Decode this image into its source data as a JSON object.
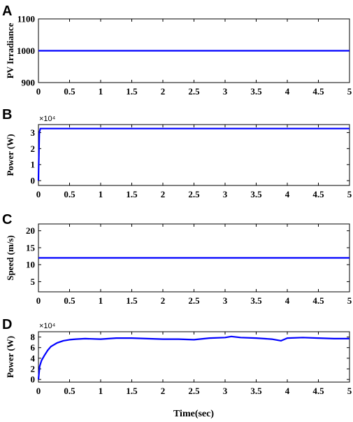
{
  "figure": {
    "xlabel": "Time(sec)"
  },
  "chart_data": [
    {
      "panel": "A",
      "type": "line",
      "title": "",
      "xlabel": "",
      "ylabel": "PV Irradiance",
      "y_multiplier": "",
      "xlim": [
        0,
        5
      ],
      "ylim": [
        900,
        1100
      ],
      "x_ticks": [
        "0",
        "0.5",
        "1",
        "1.5",
        "2",
        "2.5",
        "3",
        "3.5",
        "4",
        "4.5",
        "5"
      ],
      "y_ticks": [
        "900",
        "1000",
        "1100"
      ],
      "y_tick_values": [
        900,
        1000,
        1100
      ],
      "line_color": "#0000ff",
      "series": [
        {
          "x": [
            0,
            5
          ],
          "y": [
            1000,
            1000
          ]
        }
      ]
    },
    {
      "panel": "B",
      "type": "line",
      "title": "",
      "xlabel": "",
      "ylabel": "Power (W)",
      "y_multiplier": "×10⁴",
      "xlim": [
        0,
        5
      ],
      "ylim": [
        -0.3,
        3.5
      ],
      "x_ticks": [
        "0",
        "0.5",
        "1",
        "1.5",
        "2",
        "2.5",
        "3",
        "3.5",
        "4",
        "4.5",
        "5"
      ],
      "y_ticks": [
        "0",
        "1",
        "2",
        "3"
      ],
      "y_tick_values": [
        0,
        1,
        2,
        3
      ],
      "line_color": "#0000ff",
      "series": [
        {
          "x": [
            0,
            0.005,
            0.015,
            0.03,
            5
          ],
          "y": [
            0,
            1.0,
            3.0,
            3.25,
            3.25
          ]
        }
      ]
    },
    {
      "panel": "C",
      "type": "line",
      "title": "",
      "xlabel": "",
      "ylabel": "Speed (m/s)",
      "y_multiplier": "",
      "xlim": [
        0,
        5
      ],
      "ylim": [
        2,
        22
      ],
      "x_ticks": [
        "0",
        "0.5",
        "1",
        "1.5",
        "2",
        "2.5",
        "3",
        "3.5",
        "4",
        "4.5",
        "5"
      ],
      "y_ticks": [
        "5",
        "10",
        "15",
        "20"
      ],
      "y_tick_values": [
        5,
        10,
        15,
        20
      ],
      "line_color": "#0000ff",
      "series": [
        {
          "x": [
            0,
            5
          ],
          "y": [
            12,
            12
          ]
        }
      ]
    },
    {
      "panel": "D",
      "type": "line",
      "title": "",
      "xlabel": "Time(sec)",
      "ylabel": "Power (W)",
      "y_multiplier": "×10⁴",
      "xlim": [
        0,
        5
      ],
      "ylim": [
        -0.5,
        9
      ],
      "x_ticks": [
        "0",
        "0.5",
        "1",
        "1.5",
        "2",
        "2.5",
        "3",
        "3.5",
        "4",
        "4.5",
        "5"
      ],
      "y_ticks": [
        "0",
        "2",
        "4",
        "6",
        "8"
      ],
      "y_tick_values": [
        0,
        2,
        4,
        6,
        8
      ],
      "line_color": "#0000ff",
      "series": [
        {
          "x": [
            0,
            0.02,
            0.05,
            0.1,
            0.15,
            0.2,
            0.3,
            0.4,
            0.5,
            0.6,
            0.75,
            1.0,
            1.25,
            1.5,
            1.75,
            2.0,
            2.25,
            2.5,
            2.75,
            3.0,
            3.1,
            3.25,
            3.5,
            3.75,
            3.9,
            4.0,
            4.25,
            4.5,
            4.75,
            5.0
          ],
          "y": [
            0,
            2.5,
            3.6,
            4.6,
            5.5,
            6.2,
            6.9,
            7.3,
            7.5,
            7.6,
            7.7,
            7.6,
            7.8,
            7.8,
            7.7,
            7.6,
            7.6,
            7.5,
            7.8,
            7.9,
            8.1,
            7.9,
            7.8,
            7.6,
            7.3,
            7.8,
            7.9,
            7.8,
            7.7,
            7.7
          ]
        }
      ]
    }
  ]
}
